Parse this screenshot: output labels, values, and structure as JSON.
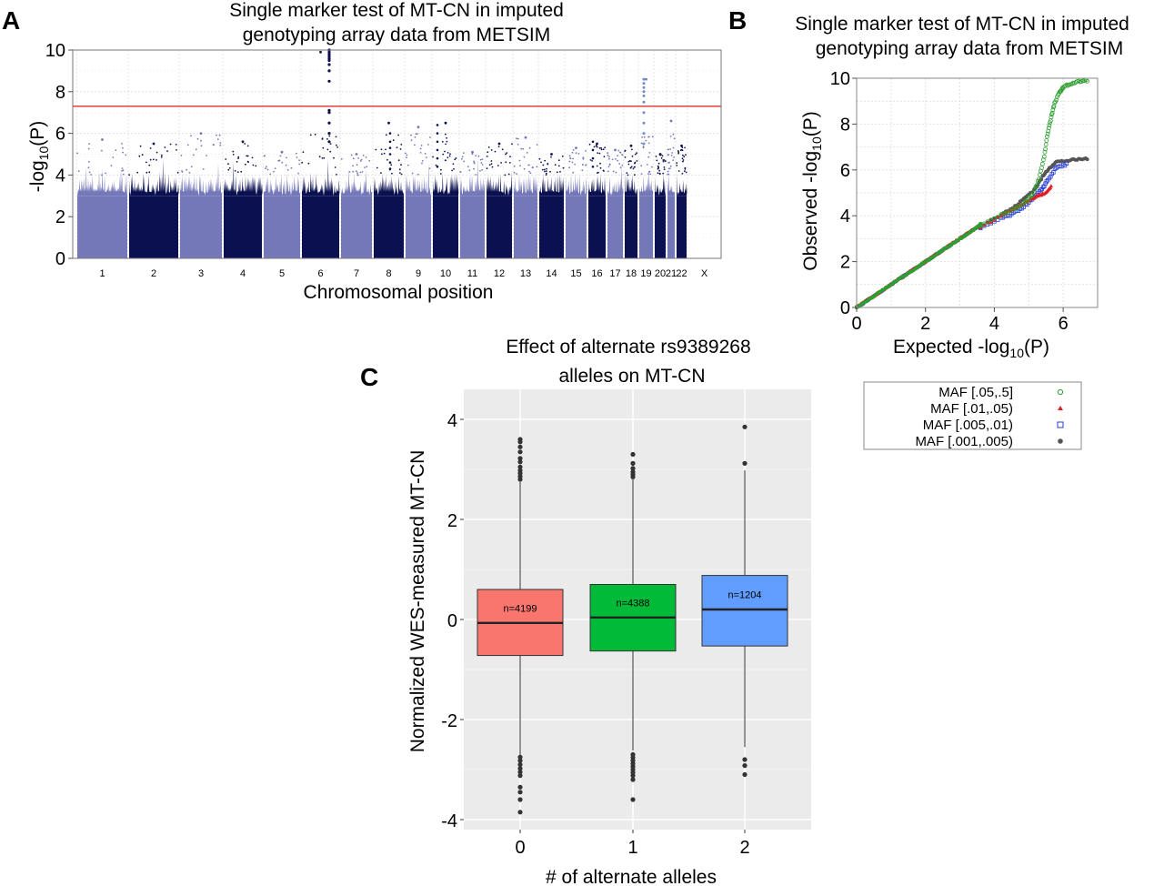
{
  "chart_data": [
    {
      "panel": "A",
      "type": "scatter",
      "subtype": "manhattan",
      "title_lines": [
        "Single marker test of MT-CN in imputed",
        "genotyping array data from METSIM"
      ],
      "xlabel": "Chromosomal position",
      "ylabel": "-log10(P)",
      "ylabel_parts": [
        "-log",
        "10",
        "(P)"
      ],
      "ylim": [
        0,
        10
      ],
      "yticks": [
        0,
        2,
        4,
        6,
        8,
        10
      ],
      "grid": true,
      "significance_threshold": 7.3,
      "threshold_color": "#e0312f",
      "colors": {
        "odd": "#7478b8",
        "even": "#0b1150",
        "light_blue": "#6f8ccc"
      },
      "chromosomes": [
        {
          "label": "1",
          "peak": 5.7
        },
        {
          "label": "2",
          "peak": 5.5
        },
        {
          "label": "3",
          "peak": 6.0
        },
        {
          "label": "4",
          "peak": 5.6
        },
        {
          "label": "5",
          "peak": 5.1
        },
        {
          "label": "6",
          "peak": 9.9
        },
        {
          "label": "7",
          "peak": 5.0
        },
        {
          "label": "8",
          "peak": 6.5
        },
        {
          "label": "9",
          "peak": 6.3
        },
        {
          "label": "10",
          "peak": 6.5
        },
        {
          "label": "11",
          "peak": 5.1
        },
        {
          "label": "12",
          "peak": 5.5
        },
        {
          "label": "13",
          "peak": 5.8
        },
        {
          "label": "14",
          "peak": 5.0
        },
        {
          "label": "15",
          "peak": 5.3
        },
        {
          "label": "16",
          "peak": 5.5
        },
        {
          "label": "17",
          "peak": 5.2
        },
        {
          "label": "18",
          "peak": 5.4
        },
        {
          "label": "19",
          "peak": 8.6
        },
        {
          "label": "20",
          "peak": 5.0
        },
        {
          "label": "21",
          "peak": 6.6
        },
        {
          "label": "22",
          "peak": 5.4
        },
        {
          "label": "X",
          "peak": null
        }
      ],
      "xtick_labels": [
        "1",
        "2",
        "3",
        "4",
        "5",
        "6",
        "7",
        "8",
        "9",
        "10",
        "11",
        "12",
        "13",
        "14",
        "15",
        "16",
        "17",
        "18",
        "19",
        "20",
        "21",
        "22",
        "X"
      ]
    },
    {
      "panel": "B",
      "type": "scatter",
      "subtype": "qq",
      "title_lines": [
        "Single marker test of MT-CN in imputed",
        "genotyping array data from METSIM"
      ],
      "xlabel": "Expected -log10(P)",
      "xlabel_parts": [
        "Expected -log",
        "10",
        "(P)"
      ],
      "ylabel": "Observed -log10(P)",
      "ylabel_parts": [
        "Observed -log",
        "10",
        "(P)"
      ],
      "xlim": [
        0,
        7
      ],
      "ylim": [
        0,
        10
      ],
      "xticks": [
        0,
        2,
        4,
        6
      ],
      "yticks": [
        0,
        2,
        4,
        6,
        8,
        10
      ],
      "grid": true,
      "legend_position": "below",
      "series": [
        {
          "name": "MAF [.05,.5]",
          "marker": "circle-open",
          "color": "#2e9e2e",
          "tail": [
            [
              3.6,
              3.6
            ],
            [
              4.2,
              4.05
            ],
            [
              4.6,
              4.3
            ],
            [
              4.9,
              4.6
            ],
            [
              5.1,
              4.9
            ],
            [
              5.3,
              5.6
            ],
            [
              5.45,
              6.6
            ],
            [
              5.55,
              7.6
            ],
            [
              5.65,
              8.3
            ],
            [
              5.75,
              8.9
            ],
            [
              5.9,
              9.4
            ],
            [
              6.0,
              9.6
            ],
            [
              6.2,
              9.75
            ],
            [
              6.45,
              9.85
            ],
            [
              6.7,
              9.9
            ]
          ]
        },
        {
          "name": "MAF [.01,.05)",
          "marker": "triangle",
          "color": "#e02020",
          "tail": [
            [
              3.6,
              3.5
            ],
            [
              4.2,
              4.0
            ],
            [
              4.6,
              4.35
            ],
            [
              4.9,
              4.6
            ],
            [
              5.1,
              4.75
            ],
            [
              5.3,
              4.9
            ],
            [
              5.5,
              5.0
            ],
            [
              5.65,
              5.3
            ]
          ]
        },
        {
          "name": "MAF [.005,.01)",
          "marker": "square-open",
          "color": "#2a3fd8",
          "tail": [
            [
              3.6,
              3.45
            ],
            [
              4.2,
              3.9
            ],
            [
              4.5,
              4.05
            ],
            [
              4.8,
              4.35
            ],
            [
              5.1,
              4.7
            ],
            [
              5.35,
              5.1
            ],
            [
              5.55,
              5.55
            ],
            [
              5.8,
              6.1
            ],
            [
              6.1,
              6.25
            ]
          ]
        },
        {
          "name": "MAF [.001,.005)",
          "marker": "circle",
          "color": "#555555",
          "tail": [
            [
              3.6,
              3.55
            ],
            [
              4.2,
              4.05
            ],
            [
              4.6,
              4.4
            ],
            [
              4.9,
              4.8
            ],
            [
              5.2,
              5.2
            ],
            [
              5.4,
              5.7
            ],
            [
              5.6,
              6.1
            ],
            [
              5.8,
              6.35
            ],
            [
              6.1,
              6.4
            ],
            [
              6.4,
              6.45
            ],
            [
              6.7,
              6.5
            ]
          ]
        }
      ]
    },
    {
      "panel": "C",
      "type": "box",
      "title_lines": [
        "Effect of alternate rs9389268",
        "alleles on MT-CN"
      ],
      "xlabel": "# of alternate alleles",
      "ylabel": "Normalized WES-measured MT-CN",
      "categories": [
        "0",
        "1",
        "2"
      ],
      "ylim": [
        -4.2,
        4.6
      ],
      "yticks": [
        -4,
        -2,
        0,
        2,
        4
      ],
      "ytick_labels": [
        "-4",
        "-2",
        "0",
        "2",
        "4"
      ],
      "grid": true,
      "background": "#ebebeb",
      "boxes": [
        {
          "category": "0",
          "n_label": "n=4199",
          "color": "#f8766d",
          "q1": -0.72,
          "median": -0.07,
          "q3": 0.6,
          "whisker_low": -2.72,
          "whisker_high": 2.75,
          "outliers": [
            3.6,
            3.55,
            3.45,
            3.35,
            3.22,
            3.15,
            3.05,
            2.98,
            2.92,
            2.86,
            2.8,
            -2.75,
            -2.82,
            -2.9,
            -2.98,
            -3.05,
            -3.12,
            -3.35,
            -3.45,
            -3.6,
            -3.85
          ]
        },
        {
          "category": "1",
          "n_label": "n=4388",
          "color": "#00ba38",
          "q1": -0.63,
          "median": 0.04,
          "q3": 0.7,
          "whisker_low": -2.62,
          "whisker_high": 2.8,
          "outliers": [
            3.3,
            3.12,
            3.02,
            2.95,
            2.9,
            2.85,
            -2.7,
            -2.76,
            -2.82,
            -2.88,
            -2.94,
            -3.0,
            -3.06,
            -3.12,
            -3.2,
            -3.6
          ]
        },
        {
          "category": "2",
          "n_label": "n=1204",
          "color": "#619cff",
          "q1": -0.53,
          "median": 0.2,
          "q3": 0.88,
          "whisker_low": -2.55,
          "whisker_high": 2.98,
          "outliers": [
            3.85,
            3.12,
            -2.8,
            -2.92,
            -3.1
          ]
        }
      ]
    }
  ],
  "panel_letters": {
    "a": "A",
    "b": "B",
    "c": "C"
  }
}
